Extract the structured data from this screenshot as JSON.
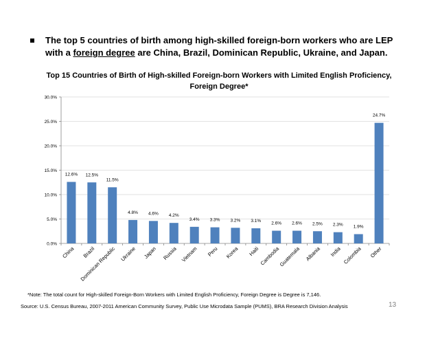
{
  "bullet": {
    "line1": "The top 5 countries of birth among high-skilled foreign-born workers who are LEP",
    "line2_pre": "with a ",
    "line2_ul": "foreign degree",
    "line2_post": " are China, Brazil, Dominican Republic, Ukraine, and Japan."
  },
  "title_line1": "Top 15 Countries of Birth of High-skilled Foreign-born Workers with Limited English Proficiency,",
  "title_line2": "Foreign Degree*",
  "note": "*Note: The total count for High-skilled Foreign-Born Workers with Limited English Proficiency, Foreign Degree is Degree is 7,146.",
  "source": "Source: U.S. Census Bureau, 2007-2011 American Community Survey, Public Use Microdata Sample (PUMS), BRA Research Division Analysis",
  "page_number": "13",
  "colors": {
    "bar": "#4f81bd",
    "axis": "#868686",
    "grid": "#d9d9d9"
  },
  "chart_data": {
    "type": "bar",
    "title": "Top 15 Countries of Birth of High-skilled Foreign-born Workers with Limited English Proficiency, Foreign Degree*",
    "categories": [
      "China",
      "Brazil",
      "Dominican Republic",
      "Ukraine",
      "Japan",
      "Russia",
      "Vietnam",
      "Peru",
      "Korea",
      "Haiti",
      "Cambodia",
      "Guatemala",
      "Albania",
      "India",
      "Colombia",
      "Other"
    ],
    "values": [
      12.6,
      12.5,
      11.5,
      4.8,
      4.6,
      4.2,
      3.4,
      3.3,
      3.2,
      3.1,
      2.6,
      2.6,
      2.5,
      2.3,
      1.9,
      24.7
    ],
    "value_labels": [
      "12.6%",
      "12.5%",
      "11.5%",
      "4.8%",
      "4.6%",
      "4.2%",
      "3.4%",
      "3.3%",
      "3.2%",
      "3.1%",
      "2.6%",
      "2.6%",
      "2.5%",
      "2.3%",
      "1.9%",
      "24.7%"
    ],
    "ylim": [
      0,
      30
    ],
    "yticks": [
      0,
      5,
      10,
      15,
      20,
      25,
      30
    ],
    "ytick_labels": [
      "0.0%",
      "5.0%",
      "10.0%",
      "15.0%",
      "20.0%",
      "25.0%",
      "30.0%"
    ],
    "xlabel": "",
    "ylabel": "",
    "grid": true,
    "legend": "none"
  }
}
